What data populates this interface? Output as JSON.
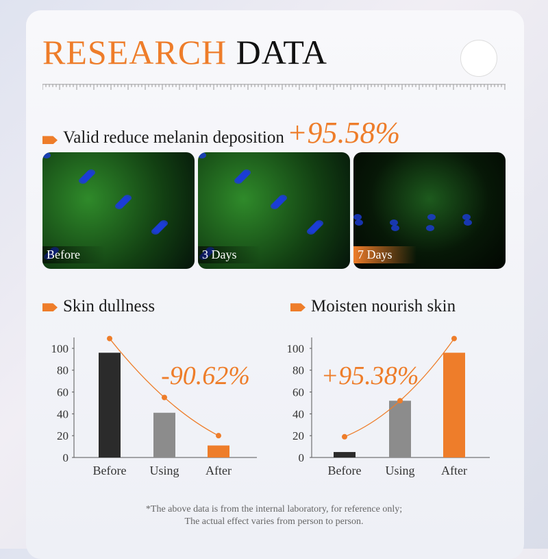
{
  "header": {
    "title_accent": "RESEARCH",
    "title_rest": "DATA",
    "subtitle": "Valid reduce melanin deposition",
    "subtitle_value": "+95.58%"
  },
  "images": [
    {
      "label": "Before"
    },
    {
      "label": "3 Days"
    },
    {
      "label": "7 Days"
    }
  ],
  "chart_data": [
    {
      "type": "bar",
      "title": "Skin dullness",
      "categories": [
        "Before",
        "Using",
        "After"
      ],
      "values": [
        96,
        41,
        11
      ],
      "trend": [
        109,
        55,
        20
      ],
      "colors": [
        "#2b2b2b",
        "#8c8c8c",
        "#ee7d2a"
      ],
      "trend_color": "#ee7d2a",
      "annotation": "-90.62%",
      "ylim": [
        0,
        110
      ],
      "yticks": [
        0,
        20,
        40,
        60,
        80,
        100
      ]
    },
    {
      "type": "bar",
      "title": "Moisten nourish skin",
      "categories": [
        "Before",
        "Using",
        "After"
      ],
      "values": [
        5,
        52,
        96
      ],
      "trend": [
        19,
        52,
        109
      ],
      "colors": [
        "#2b2b2b",
        "#8c8c8c",
        "#ee7d2a"
      ],
      "trend_color": "#ee7d2a",
      "annotation": "+95.38%",
      "ylim": [
        0,
        110
      ],
      "yticks": [
        0,
        20,
        40,
        60,
        80,
        100
      ]
    }
  ],
  "footnote": [
    "*The above data is from the internal laboratory, for reference only;",
    "The actual effect varies from person to person."
  ]
}
